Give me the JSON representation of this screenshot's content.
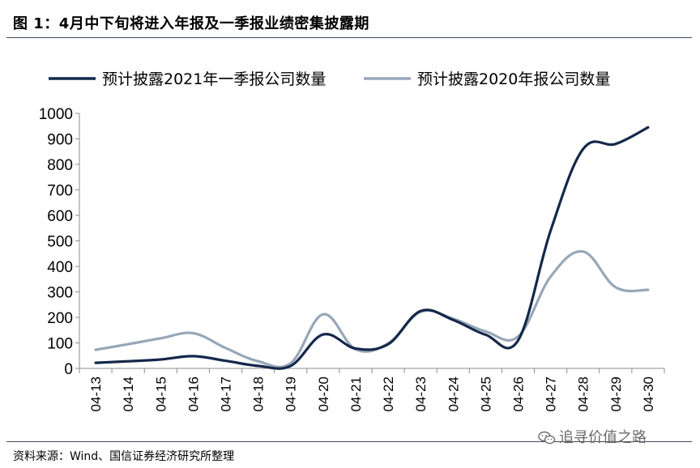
{
  "figure": {
    "title": "图 1：4月中下旬将进入年报及一季报业绩密集披露期",
    "source": "资料来源：Wind、国信证券经济研究所整理",
    "watermark": "追寻价值之路"
  },
  "chart_data": {
    "type": "line",
    "x": [
      "04-13",
      "04-14",
      "04-15",
      "04-16",
      "04-17",
      "04-18",
      "04-19",
      "04-20",
      "04-21",
      "04-22",
      "04-23",
      "04-24",
      "04-25",
      "04-26",
      "04-27",
      "04-28",
      "04-29",
      "04-30"
    ],
    "series": [
      {
        "name": "预计披露2021年一季报公司数量",
        "color": "#14284a",
        "values": [
          22,
          28,
          35,
          48,
          30,
          10,
          10,
          133,
          78,
          95,
          225,
          190,
          132,
          110,
          540,
          860,
          880,
          945
        ]
      },
      {
        "name": "预计披露2020年报公司数量",
        "color": "#97a7b8",
        "values": [
          73,
          95,
          118,
          138,
          80,
          28,
          20,
          212,
          75,
          98,
          222,
          195,
          145,
          125,
          360,
          458,
          318,
          308
        ]
      }
    ],
    "ylim": [
      0,
      1000
    ],
    "yticks": [
      "0",
      "100",
      "200",
      "300",
      "400",
      "500",
      "600",
      "700",
      "800",
      "900",
      "1000"
    ],
    "grid": false,
    "legend_position": "top"
  }
}
